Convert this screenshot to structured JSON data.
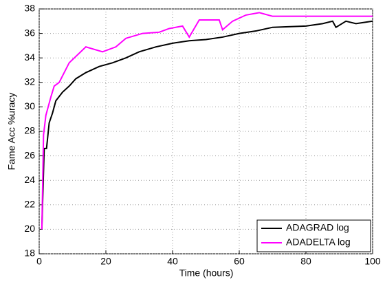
{
  "chart_data": {
    "type": "line",
    "xlabel": "Time (hours)",
    "ylabel": "Fame Acc %uracy",
    "xlim": [
      0,
      100
    ],
    "xticks": [
      0,
      20,
      40,
      60,
      80,
      100
    ],
    "ylim": [
      18,
      38
    ],
    "yticks": [
      18,
      20,
      22,
      24,
      26,
      28,
      30,
      32,
      34,
      36,
      38
    ],
    "grid": true,
    "legend": "lower right",
    "series": [
      {
        "name": "ADAGRAD log",
        "color": "#000000",
        "x": [
          0.8,
          1.5,
          2.2,
          3,
          4,
          5,
          7,
          9,
          11,
          14,
          18,
          22,
          26,
          30,
          35,
          40,
          45,
          50,
          55,
          60,
          65,
          70,
          80,
          85,
          88,
          89,
          92,
          95,
          100
        ],
        "values": [
          20,
          26.6,
          26.6,
          28.7,
          29.5,
          30.5,
          31.2,
          31.7,
          32.3,
          32.8,
          33.3,
          33.6,
          34,
          34.5,
          34.9,
          35.2,
          35.4,
          35.5,
          35.7,
          36,
          36.2,
          36.5,
          36.6,
          36.8,
          37,
          36.5,
          37,
          36.8,
          37
        ]
      },
      {
        "name": "ADADELTA log",
        "color": "#ff00ff",
        "x": [
          0.8,
          1.3,
          2,
          3.5,
          4.5,
          6,
          7.5,
          9,
          14,
          19,
          23,
          26,
          31,
          36,
          39,
          43,
          45,
          48,
          54,
          55,
          58,
          62,
          66,
          70,
          100
        ],
        "values": [
          20,
          27.7,
          29.3,
          30.8,
          31.7,
          32,
          32.8,
          33.6,
          34.9,
          34.5,
          34.9,
          35.6,
          36,
          36.1,
          36.4,
          36.6,
          35.7,
          37.1,
          37.1,
          36.3,
          37,
          37.5,
          37.7,
          37.4,
          37.4
        ]
      }
    ]
  }
}
